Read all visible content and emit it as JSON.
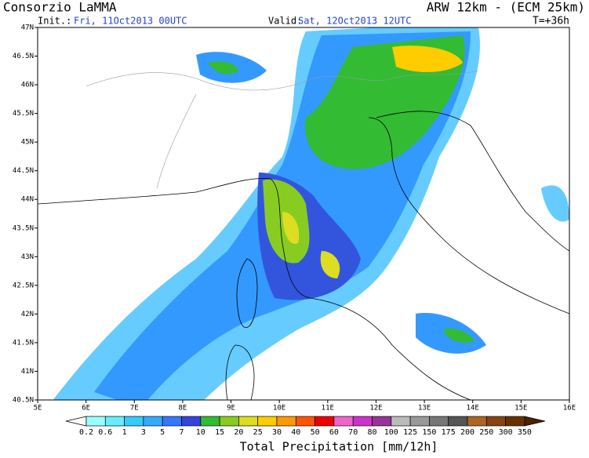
{
  "header": {
    "title": "Consorzio LaMMA",
    "init_label": "Init.:",
    "init_value": "Fri, 11Oct2013 00UTC",
    "valid_label": "Valid:",
    "valid_value": "Sat, 12Oct2013 12UTC",
    "model": "ARW 12km - (ECM 25km)",
    "lead_time": "T=+36h"
  },
  "map": {
    "lat_labels": [
      "47N",
      "46.5N",
      "46N",
      "45.5N",
      "45N",
      "44.5N",
      "44N",
      "43.5N",
      "43N",
      "42.5N",
      "42N",
      "41.5N",
      "41N",
      "40.5N"
    ],
    "lon_labels": [
      "5E",
      "6E",
      "7E",
      "8E",
      "9E",
      "10E",
      "11E",
      "12E",
      "13E",
      "14E",
      "15E",
      "16E"
    ]
  },
  "colorbar": {
    "title": "Total Precipitation [mm/12h]",
    "labels": [
      "0.2",
      "0.6",
      "1",
      "3",
      "5",
      "7",
      "10",
      "15",
      "20",
      "25",
      "30",
      "40",
      "50",
      "60",
      "70",
      "80",
      "100",
      "125",
      "150",
      "175",
      "200",
      "250",
      "300",
      "350"
    ],
    "colors": [
      "#ffffff",
      "#99ffff",
      "#66eeff",
      "#33ccff",
      "#33aaff",
      "#3377ff",
      "#3344dd",
      "#33bb33",
      "#88cc22",
      "#dddd22",
      "#ffcc00",
      "#ff9900",
      "#ff5500",
      "#ee0000",
      "#ee66cc",
      "#cc33cc",
      "#993399",
      "#bbbbbb",
      "#999999",
      "#777777",
      "#555555",
      "#aa6622",
      "#884411",
      "#663300",
      "#4a2200"
    ]
  }
}
